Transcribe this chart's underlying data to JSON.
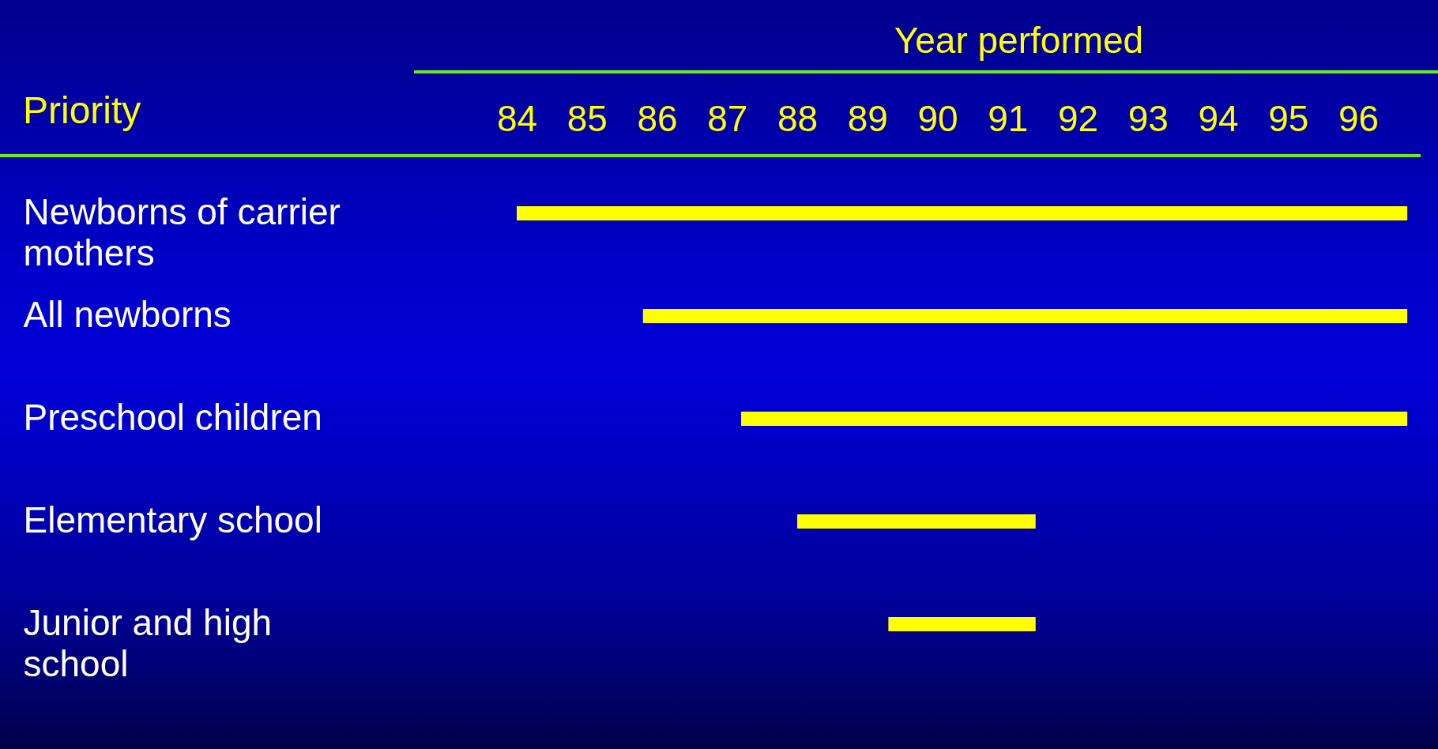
{
  "chart_data": {
    "type": "bar",
    "orientation": "horizontal",
    "xlabel": "Year performed",
    "ylabel": "Priority",
    "categories": [
      "Newborns of carrier mothers",
      "All newborns",
      "Preschool children",
      "Elementary school",
      "Junior and high school"
    ],
    "base": [
      84,
      85.8,
      87.2,
      88,
      89.3
    ],
    "values": [
      12.7,
      10.9,
      9.5,
      3.4,
      2.1
    ],
    "color": "#ffff00",
    "xlim": [
      84,
      96.8
    ],
    "xticks": [
      84,
      85,
      86,
      87,
      88,
      89,
      90,
      91,
      92,
      93,
      94,
      95,
      96
    ],
    "grid": false
  }
}
